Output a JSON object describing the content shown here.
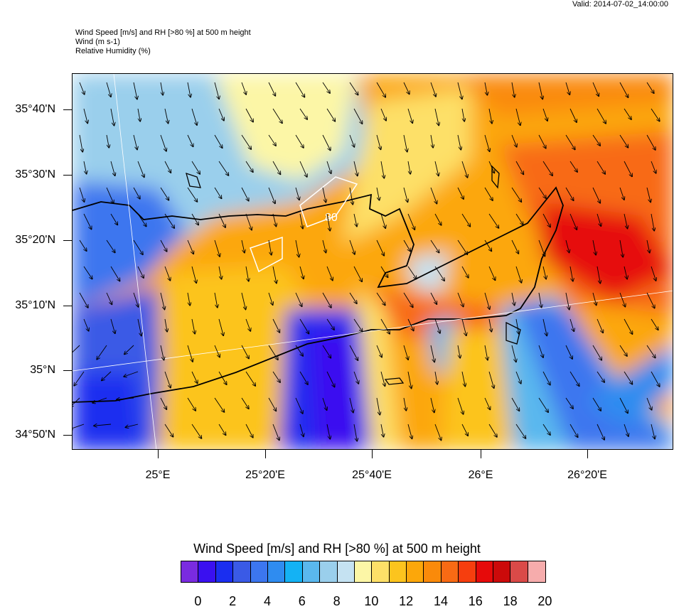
{
  "valid_text": "Valid: 2014-07-02_14:00:00",
  "header_lines": [
    "Wind Speed [m/s] and RH [>80 %] at 500 m height",
    "Wind   (m s-1)",
    "Relative Humidity   (%)"
  ],
  "contour_label": "80",
  "lat_labels": [
    "35°40'N",
    "35°30'N",
    "35°20'N",
    "35°10'N",
    "35°N",
    "34°50'N"
  ],
  "lon_labels": [
    "25°E",
    "25°20'E",
    "25°40'E",
    "26°E",
    "26°20'E"
  ],
  "legend": {
    "title": "Wind Speed [m/s] and RH [>80 %] at 500 m height",
    "labels": [
      "0",
      "2",
      "4",
      "6",
      "8",
      "10",
      "12",
      "14",
      "16",
      "18",
      "20"
    ],
    "colors": [
      "#7a2be0",
      "#3a10f0",
      "#1a2ef0",
      "#3a5ae6",
      "#3c76ef",
      "#2f8cf0",
      "#14b2f4",
      "#5ab8ee",
      "#9acfec",
      "#c5e2f2",
      "#fcf6a6",
      "#fde068",
      "#fcc41e",
      "#fca70a",
      "#fa8a0a",
      "#f86a14",
      "#f63e0e",
      "#e60a0a",
      "#cc0a0a",
      "#da4a48",
      "#f6acac"
    ]
  }
}
